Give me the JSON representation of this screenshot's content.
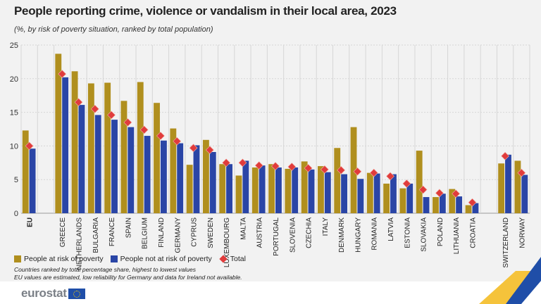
{
  "title": "People reporting crime, violence or vandalism in their local area, 2023",
  "subtitle": "(%, by risk of poverty situation, ranked by total population)",
  "chart_data": {
    "type": "bar",
    "title": "People reporting crime, violence or vandalism in their local area, 2023",
    "ylim": [
      0,
      25
    ],
    "yticks": [
      0,
      5,
      10,
      15,
      20,
      25
    ],
    "grid": true,
    "legend_placement": "bottom-left",
    "categories": [
      "EU",
      "",
      "GREECE",
      "NETHERLANDS",
      "BULGARIA",
      "FRANCE",
      "SPAIN",
      "BELGIUM",
      "FINLAND",
      "GERMANY",
      "CYPRUS",
      "SWEDEN",
      "LUXEMBOURG",
      "MALTA",
      "AUSTRIA",
      "PORTUGAL",
      "SLOVENIA",
      "CZECHIA",
      "ITALY",
      "DENMARK",
      "HUNGARY",
      "ROMANIA",
      "LATVIA",
      "ESTONIA",
      "SLOVAKIA",
      "POLAND",
      "LITHUANIA",
      "CROATIA",
      "",
      "SWITZERLAND",
      "NORWAY"
    ],
    "series": [
      {
        "name": "People at risk of poverty",
        "type": "bar",
        "color": "#b08f1e",
        "values": [
          12.3,
          null,
          23.7,
          21.1,
          19.3,
          19.4,
          16.7,
          19.5,
          16.4,
          12.6,
          7.2,
          10.9,
          7.3,
          5.6,
          6.8,
          7.3,
          6.6,
          7.7,
          7.0,
          9.7,
          12.8,
          6.0,
          4.4,
          3.7,
          9.3,
          2.4,
          3.6,
          1.2,
          null,
          7.4,
          7.8
        ]
      },
      {
        "name": "People not at risk of poverty",
        "type": "bar",
        "color": "#2a45a6",
        "values": [
          9.6,
          null,
          20.2,
          16.1,
          14.6,
          13.9,
          12.8,
          11.5,
          10.8,
          10.4,
          10.1,
          9.1,
          7.3,
          7.8,
          7.1,
          6.8,
          6.8,
          6.5,
          6.1,
          5.8,
          5.1,
          5.9,
          5.8,
          4.4,
          2.4,
          2.9,
          2.5,
          1.5,
          null,
          8.7,
          5.7
        ]
      },
      {
        "name": "Total",
        "type": "marker",
        "color": "#e03c3c",
        "values": [
          10.0,
          null,
          20.7,
          16.5,
          15.5,
          14.6,
          13.5,
          12.4,
          11.5,
          10.7,
          9.7,
          9.4,
          7.5,
          7.5,
          7.1,
          7.0,
          6.9,
          6.7,
          6.5,
          6.4,
          6.2,
          6.0,
          5.5,
          4.4,
          3.5,
          3.0,
          2.9,
          1.6,
          null,
          8.5,
          6.0
        ]
      }
    ]
  },
  "legend": [
    "People at risk of poverty",
    "People not at risk of poverty",
    "Total"
  ],
  "notes": [
    "Countries ranked by total percentage share, highest to lowest values",
    "EU values are estimated, low reliability for Germany and data for Ireland not available."
  ],
  "logo": "eurostat"
}
